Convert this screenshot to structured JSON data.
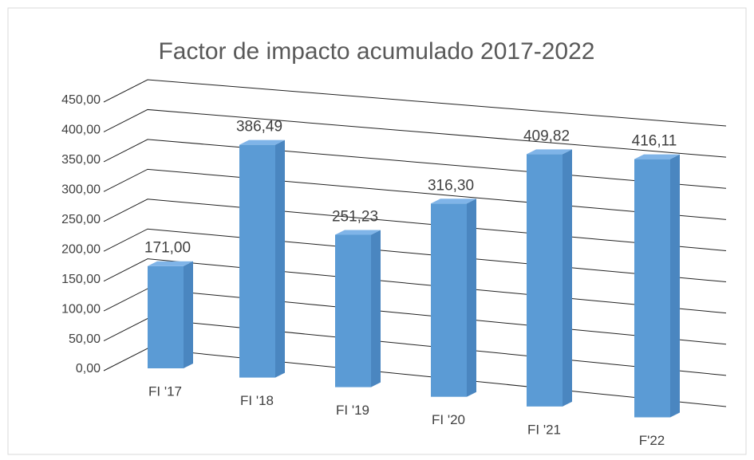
{
  "chart_data": {
    "type": "bar3d",
    "title": "Factor de impacto acumulado 2017-2022",
    "categories": [
      "FI '17",
      "FI '18",
      "FI '19",
      "FI '20",
      "FI '21",
      "F'22"
    ],
    "values": [
      171.0,
      386.49,
      251.23,
      316.3,
      409.82,
      416.11
    ],
    "value_labels": [
      "171,00",
      "386,49",
      "251,23",
      "316,30",
      "409,82",
      "416,11"
    ],
    "color": "#5b9bd5",
    "ylim": [
      0,
      450
    ],
    "yticks": [
      {
        "value": 0,
        "label": "0,00"
      },
      {
        "value": 50,
        "label": "50,00"
      },
      {
        "value": 100,
        "label": "100,00"
      },
      {
        "value": 150,
        "label": "150,00"
      },
      {
        "value": 200,
        "label": "200,00"
      },
      {
        "value": 250,
        "label": "250,00"
      },
      {
        "value": 300,
        "label": "300,00"
      },
      {
        "value": 350,
        "label": "350,00"
      },
      {
        "value": 400,
        "label": "400,00"
      },
      {
        "value": 450,
        "label": "450,00"
      }
    ],
    "grid": true
  }
}
